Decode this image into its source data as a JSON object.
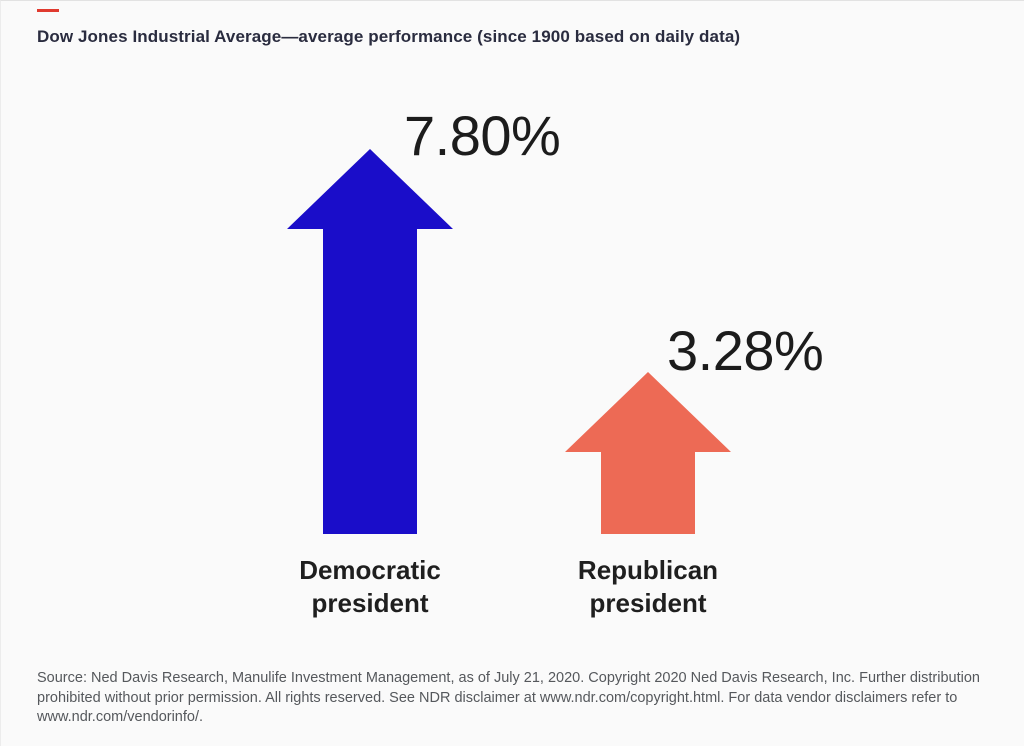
{
  "header": {
    "accent_color": "#e03a2f",
    "title": "Dow Jones Industrial Average—average performance (since 1900 based on daily data)"
  },
  "chart_data": {
    "type": "bar",
    "variant": "upward-arrow pictogram bars",
    "title": "Dow Jones Industrial Average—average performance (since 1900 based on daily data)",
    "categories": [
      "Democratic president",
      "Republican president"
    ],
    "values": [
      7.8,
      3.28
    ],
    "value_labels": [
      "7.80%",
      "3.28%"
    ],
    "colors": [
      "#1a0dc9",
      "#ed6a55"
    ],
    "ylabel": "",
    "xlabel": "",
    "ylim": [
      0,
      7.8
    ],
    "grid": false,
    "legend": false,
    "annotations": [
      "7.80% printed beside tip of blue Democratic arrow",
      "3.28% printed beside tip of coral Republican arrow"
    ]
  },
  "arrows": [
    {
      "label_line1": "Democratic",
      "label_line2": "president",
      "value_label": "7.80%",
      "color": "#1a0dc9"
    },
    {
      "label_line1": "Republican",
      "label_line2": "president",
      "value_label": "3.28%",
      "color": "#ed6a55"
    }
  ],
  "footer": {
    "lines": [
      "Source: Ned Davis Research, Manulife Investment Management, as of July 21, 2020. Copyright 2020 Ned Davis Research, Inc. Further distribution",
      "prohibited without prior permission. All rights reserved. See NDR disclaimer at www.ndr.com/copyright.html. For data vendor disclaimers refer to",
      "www.ndr.com/vendorinfo/."
    ]
  }
}
